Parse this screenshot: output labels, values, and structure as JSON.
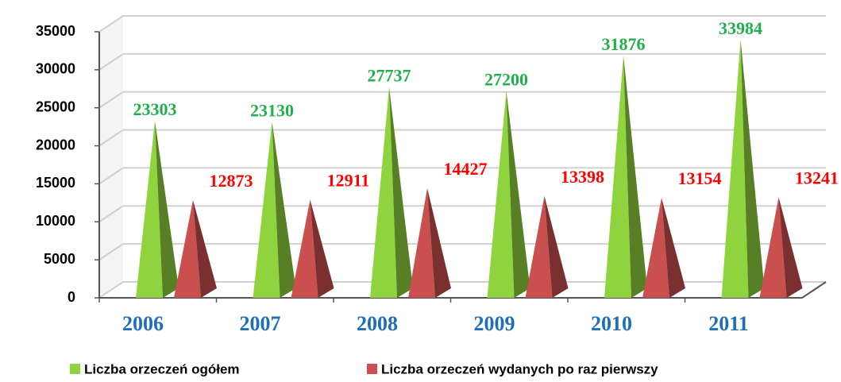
{
  "chart_data": {
    "type": "pyramid",
    "categories": [
      "2006",
      "2007",
      "2008",
      "2009",
      "2010",
      "2011"
    ],
    "series": [
      {
        "name": "Liczba orzeczeń ogółem",
        "color": "#8fd33f",
        "values": [
          23303,
          23130,
          27737,
          27200,
          31876,
          33984
        ]
      },
      {
        "name": "Liczba orzeczeń wydanych po raz pierwszy",
        "color": "#c9504f",
        "values": [
          12873,
          12911,
          14427,
          13398,
          13154,
          13241
        ]
      }
    ],
    "label_colors": [
      "#1fb04a",
      "#ff0000"
    ],
    "ylim": [
      0,
      35000
    ],
    "yticks": [
      0,
      5000,
      10000,
      15000,
      20000,
      25000,
      30000,
      35000
    ],
    "grid": true
  }
}
